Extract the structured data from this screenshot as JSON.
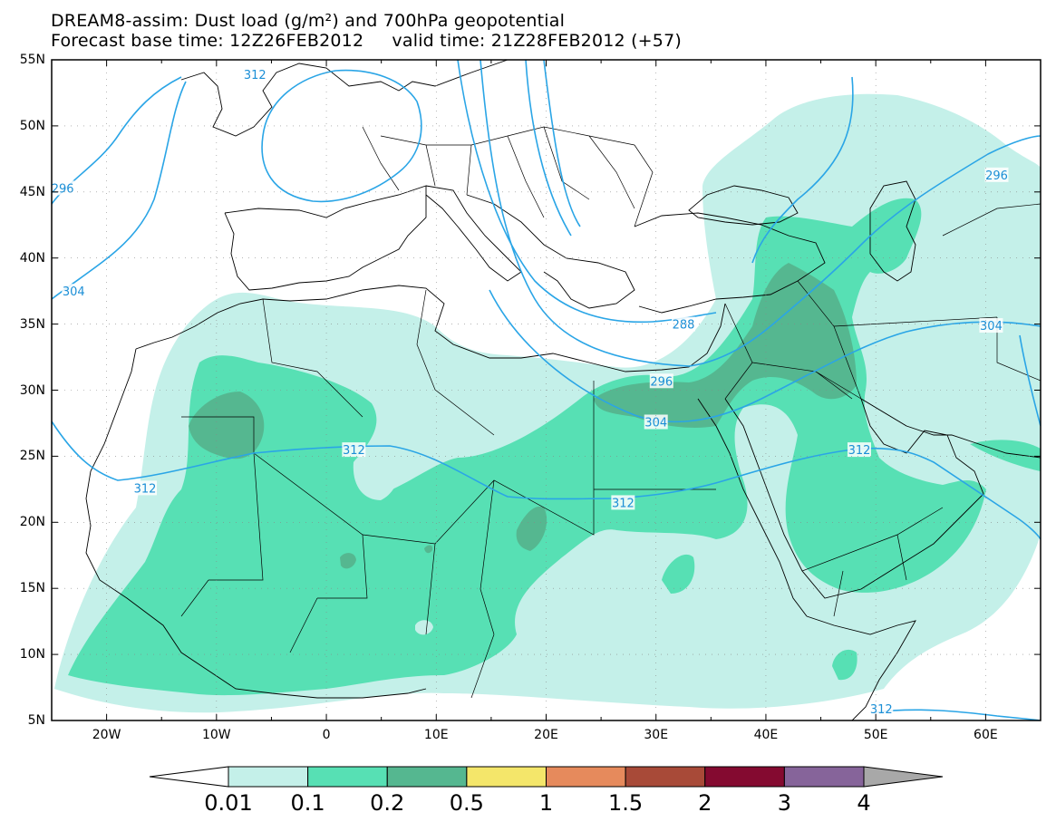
{
  "header": {
    "title_line1": "DREAM8-assim: Dust load (g/m²) and 700hPa geopotential",
    "title_line2": "Forecast base time: 12Z26FEB2012     valid time: 21Z28FEB2012 (+57)"
  },
  "map": {
    "lat_range": [
      5,
      55
    ],
    "lon_range": [
      -25,
      65
    ],
    "lat_labels": [
      "55N",
      "50N",
      "45N",
      "40N",
      "35N",
      "30N",
      "25N",
      "20N",
      "15N",
      "10N",
      "5N"
    ],
    "lon_labels": [
      "20W",
      "10W",
      "0",
      "10E",
      "20E",
      "30E",
      "40E",
      "50E",
      "60E"
    ],
    "contour_labels": [
      {
        "text": "312",
        "lon": -6.5,
        "lat": 53.9
      },
      {
        "text": "296",
        "lon": -24.0,
        "lat": 45.3
      },
      {
        "text": "304",
        "lon": -23.0,
        "lat": 37.5
      },
      {
        "text": "288",
        "lon": 32.5,
        "lat": 35.0
      },
      {
        "text": "296",
        "lon": 30.5,
        "lat": 30.7
      },
      {
        "text": "304",
        "lon": 30.0,
        "lat": 27.6
      },
      {
        "text": "312",
        "lon": 2.5,
        "lat": 25.5
      },
      {
        "text": "312",
        "lon": -16.5,
        "lat": 22.6
      },
      {
        "text": "312",
        "lon": 27.0,
        "lat": 21.5
      },
      {
        "text": "312",
        "lon": 48.5,
        "lat": 25.5
      },
      {
        "text": "304",
        "lon": 60.5,
        "lat": 34.9
      },
      {
        "text": "296",
        "lon": 61.0,
        "lat": 46.3
      },
      {
        "text": "312",
        "lon": 50.5,
        "lat": 5.9
      }
    ]
  },
  "colorbar": {
    "colors": [
      "#ffffff",
      "#c4f0e9",
      "#57e0b4",
      "#55b790",
      "#f4e66a",
      "#e68a5c",
      "#a84a38",
      "#840a30",
      "#86649a",
      "#a8a8a8"
    ],
    "labels": [
      "0.01",
      "0.1",
      "0.2",
      "0.5",
      "1",
      "1.5",
      "2",
      "3",
      "4"
    ]
  }
}
